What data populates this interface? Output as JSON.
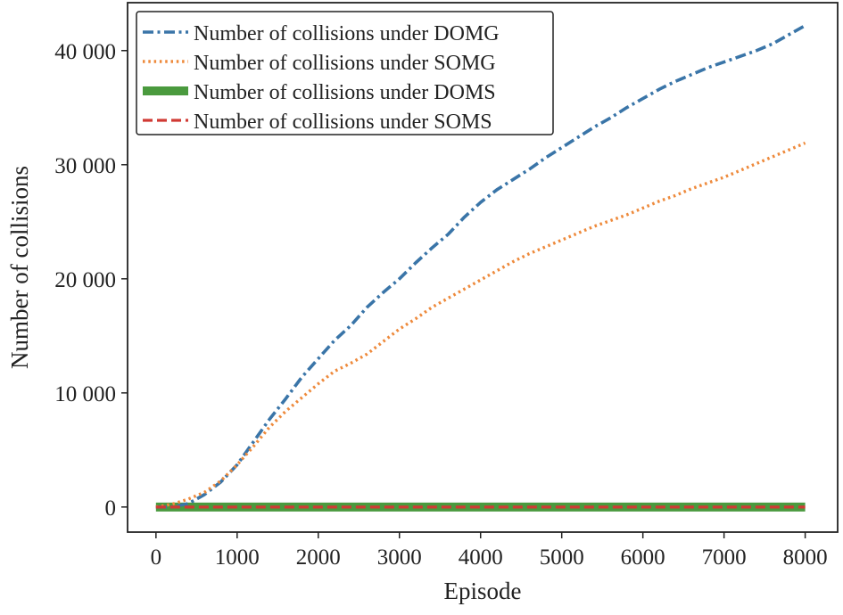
{
  "chart_data": {
    "type": "line",
    "xlabel": "Episode",
    "ylabel": "Number of collisions",
    "xlim": [
      -350,
      8400
    ],
    "ylim": [
      -2200,
      44200
    ],
    "xticks": [
      0,
      1000,
      2000,
      3000,
      4000,
      5000,
      6000,
      7000,
      8000
    ],
    "xtick_labels": [
      "0",
      "1000",
      "2000",
      "3000",
      "4000",
      "5000",
      "6000",
      "7000",
      "8000"
    ],
    "yticks": [
      0,
      10000,
      20000,
      30000,
      40000
    ],
    "ytick_labels": [
      "0",
      "10 000",
      "20 000",
      "30 000",
      "40 000"
    ],
    "grid": false,
    "legend_position": "top-left",
    "series": [
      {
        "name": "Number of collisions under DOMG",
        "color": "#3a75a8",
        "style": "dashdot",
        "x": [
          0,
          200,
          400,
          600,
          800,
          1000,
          1200,
          1400,
          1600,
          1800,
          2000,
          2200,
          2400,
          2600,
          2800,
          3000,
          3200,
          3400,
          3600,
          3800,
          4000,
          4200,
          4400,
          4600,
          4800,
          5000,
          5200,
          5400,
          5600,
          5800,
          6000,
          6200,
          6400,
          6600,
          6800,
          7000,
          7200,
          7400,
          7600,
          7800,
          8000
        ],
        "values": [
          0,
          0,
          300,
          1100,
          2200,
          3700,
          5700,
          7700,
          9500,
          11400,
          13000,
          14600,
          15900,
          17500,
          18800,
          20000,
          21400,
          22700,
          23900,
          25400,
          26700,
          27800,
          28700,
          29600,
          30600,
          31500,
          32400,
          33300,
          34100,
          35000,
          35800,
          36600,
          37300,
          37900,
          38500,
          39000,
          39500,
          40000,
          40600,
          41400,
          42200
        ]
      },
      {
        "name": "Number of collisions under SOMG",
        "color": "#ee8a3c",
        "style": "dotted",
        "x": [
          0,
          200,
          400,
          600,
          800,
          1000,
          1200,
          1400,
          1600,
          1800,
          2000,
          2200,
          2400,
          2600,
          2800,
          3000,
          3200,
          3400,
          3600,
          3800,
          4000,
          4200,
          4400,
          4600,
          4800,
          5000,
          5200,
          5400,
          5600,
          5800,
          6000,
          6200,
          6400,
          6600,
          6800,
          7000,
          7200,
          7400,
          7600,
          7800,
          8000
        ],
        "values": [
          0,
          250,
          700,
          1300,
          2300,
          3700,
          5300,
          7000,
          8400,
          9600,
          10800,
          11900,
          12600,
          13400,
          14500,
          15600,
          16500,
          17500,
          18300,
          19100,
          19900,
          20700,
          21500,
          22200,
          22800,
          23400,
          24000,
          24600,
          25100,
          25600,
          26200,
          26800,
          27300,
          27900,
          28400,
          28900,
          29500,
          30100,
          30700,
          31300,
          31900
        ]
      },
      {
        "name": "Number of collisions under DOMS",
        "color": "#4a9a3e",
        "style": "solid-thick",
        "x": [
          0,
          8000
        ],
        "values": [
          0,
          0
        ]
      },
      {
        "name": "Number of collisions under SOMS",
        "color": "#d03a34",
        "style": "dashed",
        "x": [
          0,
          8000
        ],
        "values": [
          0,
          0
        ]
      }
    ]
  }
}
